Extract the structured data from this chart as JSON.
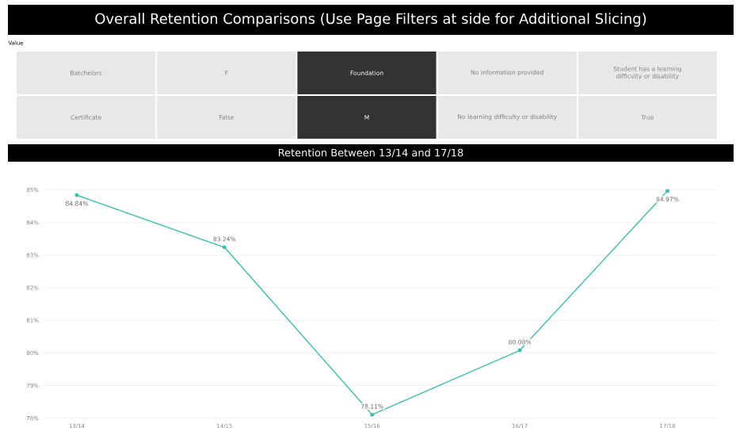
{
  "chart_data": [
    {
      "type": "other",
      "title": "Overall Retention Comparisons (Use Page Filters at side for Additional Slicing)",
      "subtitle": "Value",
      "categories": [
        "Batchelors",
        "F",
        "Foundation",
        "No information provided",
        "Student has a learning difficulty or disability",
        "Certificate",
        "False",
        "M",
        "No learning difficulty or disability",
        "True"
      ],
      "colors": [
        "#e8e8e8",
        "#e8e8e8",
        "#333333",
        "#e8e8e8",
        "#e8e8e8",
        "#e8e8e8",
        "#e8e8e8",
        "#333333",
        "#e8e8e8",
        "#e8e8e8"
      ]
    },
    {
      "type": "line",
      "title": "Retention Between 13/14 and 17/18",
      "categories": [
        "13/14",
        "14/15",
        "15/16",
        "16/17",
        "17/18"
      ],
      "series": [
        {
          "color": "#3bbfad",
          "values": [
            84.84,
            83.24,
            78.11,
            80.08,
            84.97
          ],
          "value_labels": [
            "84.84%",
            "83.24%",
            "78.11%",
            "80.08%",
            "84.97%"
          ]
        }
      ],
      "ylim": [
        78,
        85
      ],
      "yticks": [
        {
          "value": 78,
          "label": "78%"
        },
        {
          "value": 79,
          "label": "79%"
        },
        {
          "value": 80,
          "label": "80%"
        },
        {
          "value": 81,
          "label": "81%"
        },
        {
          "value": 82,
          "label": "82%"
        },
        {
          "value": 83,
          "label": "83%"
        },
        {
          "value": 84,
          "label": "84%"
        },
        {
          "value": 85,
          "label": "85%"
        }
      ],
      "grid": "y",
      "marker": "circle",
      "line_style": "solid"
    }
  ]
}
